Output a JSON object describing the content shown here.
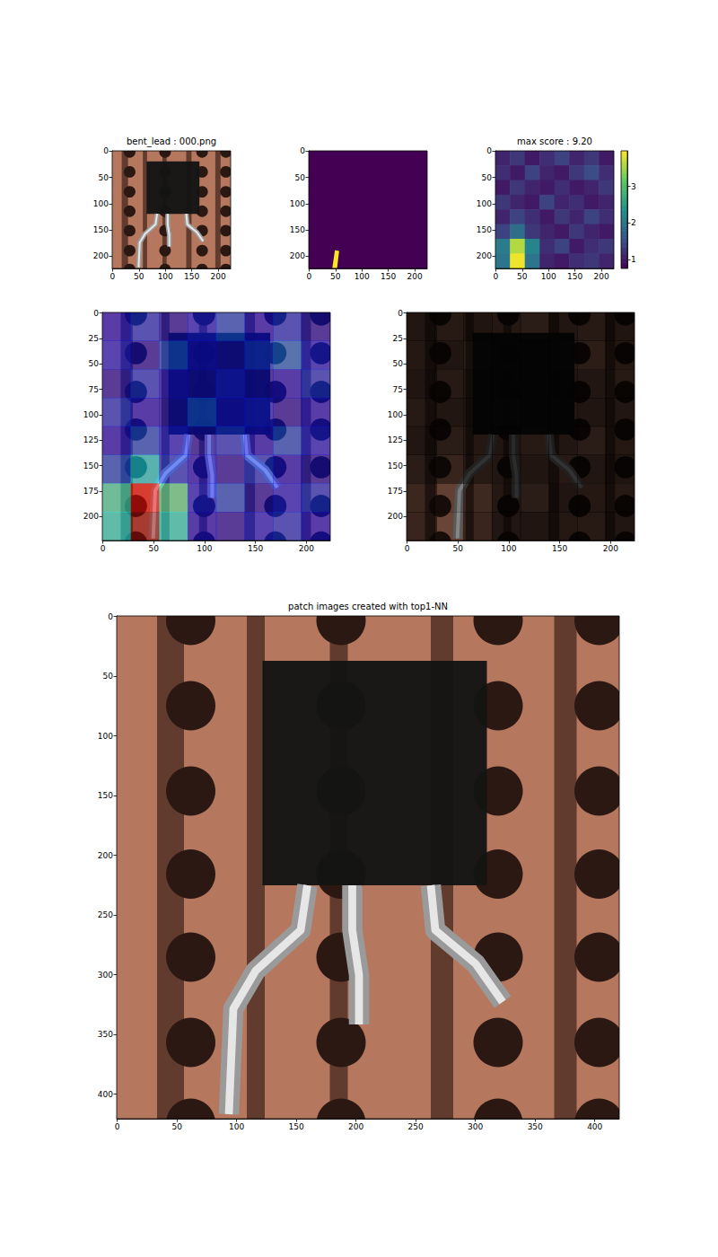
{
  "chart_data": [
    {
      "type": "image",
      "title": "bent_lead : 000.png",
      "xlim": [
        -0.5,
        223.5
      ],
      "ylim": [
        -0.5,
        223.5
      ],
      "xticks": [
        0,
        50,
        100,
        150,
        200
      ],
      "yticks": [
        0,
        50,
        100,
        150,
        200
      ]
    },
    {
      "type": "mask",
      "polygon": [
        [
          44,
          223
        ],
        [
          49,
          189
        ],
        [
          57,
          190
        ],
        [
          53,
          223
        ]
      ],
      "xlim": [
        -0.5,
        223.5
      ],
      "ylim": [
        -0.5,
        223.5
      ],
      "xticks": [
        0,
        50,
        100,
        150,
        200
      ],
      "yticks": [
        0,
        50,
        100,
        150,
        200
      ]
    },
    {
      "type": "heatmap",
      "title": "max score : 9.20",
      "values": [
        [
          1.1,
          1.3,
          1.0,
          1.2,
          1.4,
          1.1,
          1.3,
          1.0
        ],
        [
          1.2,
          1.0,
          1.4,
          1.1,
          1.0,
          1.3,
          1.5,
          1.2
        ],
        [
          1.0,
          1.3,
          1.1,
          1.0,
          1.2,
          1.0,
          1.1,
          1.3
        ],
        [
          1.3,
          1.1,
          1.0,
          1.4,
          1.1,
          1.2,
          1.0,
          1.1
        ],
        [
          1.1,
          1.4,
          1.2,
          1.0,
          1.3,
          1.1,
          1.4,
          1.2
        ],
        [
          1.4,
          1.9,
          1.3,
          1.1,
          1.0,
          1.3,
          1.1,
          1.0
        ],
        [
          2.1,
          3.6,
          2.2,
          1.2,
          1.4,
          1.0,
          1.2,
          1.3
        ],
        [
          2.0,
          3.9,
          2.0,
          1.1,
          1.0,
          1.2,
          1.3,
          1.1
        ]
      ],
      "xlim": [
        -0.5,
        223.5
      ],
      "ylim": [
        -0.5,
        223.5
      ],
      "xticks": [
        0,
        50,
        100,
        150,
        200
      ],
      "yticks": [
        0,
        50,
        100,
        150,
        200
      ],
      "colorbar": {
        "range": [
          0.75,
          3.98
        ],
        "ticks": [
          1,
          2,
          3
        ]
      }
    },
    {
      "type": "overlay",
      "xlim": [
        -0.5,
        223.5
      ],
      "ylim": [
        -0.5,
        223.5
      ],
      "xticks": [
        0,
        50,
        100,
        150,
        200
      ],
      "yticks": [
        0,
        25,
        50,
        75,
        100,
        125,
        150,
        175,
        200
      ]
    },
    {
      "type": "masked_image",
      "xlim": [
        -0.5,
        223.5
      ],
      "ylim": [
        -0.5,
        223.5
      ],
      "xticks": [
        0,
        50,
        100,
        150,
        200
      ],
      "yticks": [
        0,
        25,
        50,
        75,
        100,
        125,
        150,
        175,
        200
      ]
    },
    {
      "type": "image",
      "title": "patch images created with top1-NN",
      "xlim": [
        -0.5,
        420.5
      ],
      "ylim": [
        -0.5,
        420.5
      ],
      "xticks": [
        0,
        50,
        100,
        150,
        200,
        250,
        300,
        350,
        400
      ],
      "yticks": [
        0,
        50,
        100,
        150,
        200,
        250,
        300,
        350,
        400
      ]
    }
  ]
}
